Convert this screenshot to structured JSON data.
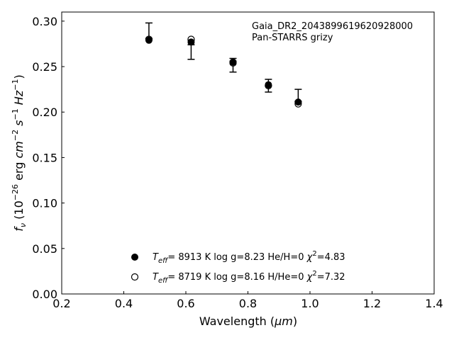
{
  "chart_data": {
    "type": "scatter",
    "xlabel_main": "Wavelength (",
    "xlabel_unit": "μm",
    "xlabel_close": ")",
    "ylabel_parts": {
      "f": "f",
      "nu": "ν",
      "open": " (10",
      "exp1": "−26",
      "erg": " erg ",
      "cm": "cm",
      "exp2": "−2",
      "s": " s",
      "exp3": "−1",
      "hz": " Hz",
      "exp4": "−1",
      "close": ")"
    },
    "xlim": [
      0.2,
      1.4
    ],
    "ylim": [
      0.0,
      0.31
    ],
    "xticks": [
      "0.2",
      "0.4",
      "0.6",
      "0.8",
      "1.0",
      "1.2",
      "1.4"
    ],
    "yticks": [
      "0.00",
      "0.05",
      "0.10",
      "0.15",
      "0.20",
      "0.25",
      "0.30"
    ],
    "annotations": [
      "Gaia_DR2_2043899619620928000",
      "Pan-STARRS grizy"
    ],
    "observed": {
      "x": [
        0.481,
        0.617,
        0.752,
        0.866,
        0.962
      ],
      "y": [
        0.281,
        0.274,
        0.256,
        0.229,
        0.212
      ],
      "err_lower": [
        0.281,
        0.258,
        0.244,
        0.222,
        0.211
      ],
      "err_upper": [
        0.298,
        0.279,
        0.259,
        0.236,
        0.225
      ]
    },
    "series": [
      {
        "marker": "filled",
        "x": [
          0.481,
          0.617,
          0.752,
          0.866,
          0.962
        ],
        "y": [
          0.279,
          0.277,
          0.255,
          0.23,
          0.211
        ],
        "legend": {
          "teff_T": "T",
          "teff_sub": "eff",
          "teff_rest": "=  8913 K  log g=8.23  He/H=0  ",
          "chi": "χ",
          "chi_sup": "2",
          "chi_rest": "=4.83"
        }
      },
      {
        "marker": "open",
        "x": [
          0.481,
          0.617,
          0.752,
          0.866,
          0.962
        ],
        "y": [
          0.28,
          0.28,
          0.254,
          0.229,
          0.209
        ],
        "legend": {
          "teff_T": "T",
          "teff_sub": "eff",
          "teff_rest": "=  8719 K  log g=8.16  H/He=0  ",
          "chi": "χ",
          "chi_sup": "2",
          "chi_rest": "=7.32"
        }
      }
    ],
    "legend_position": "lower-center"
  }
}
